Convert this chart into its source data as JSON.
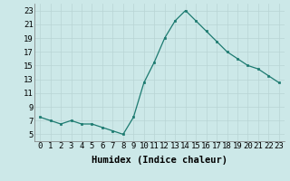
{
  "x": [
    0,
    1,
    2,
    3,
    4,
    5,
    6,
    7,
    8,
    9,
    10,
    11,
    12,
    13,
    14,
    15,
    16,
    17,
    18,
    19,
    20,
    21,
    22,
    23
  ],
  "y": [
    7.5,
    7.0,
    6.5,
    7.0,
    6.5,
    6.5,
    6.0,
    5.5,
    5.0,
    7.5,
    12.5,
    15.5,
    19.0,
    21.5,
    23.0,
    21.5,
    20.0,
    18.5,
    17.0,
    16.0,
    15.0,
    14.5,
    13.5,
    12.5
  ],
  "line_color": "#1c7a70",
  "marker_color": "#1c7a70",
  "bg_color": "#cce8e8",
  "grid_color": "#b8d4d4",
  "xlabel": "Humidex (Indice chaleur)",
  "xlim": [
    -0.5,
    23.5
  ],
  "ylim": [
    4,
    24
  ],
  "yticks": [
    5,
    7,
    9,
    11,
    13,
    15,
    17,
    19,
    21,
    23
  ],
  "xtick_labels": [
    "0",
    "1",
    "2",
    "3",
    "4",
    "5",
    "6",
    "7",
    "8",
    "9",
    "10",
    "11",
    "12",
    "13",
    "14",
    "15",
    "16",
    "17",
    "18",
    "19",
    "20",
    "21",
    "22",
    "23"
  ],
  "xlabel_fontsize": 7.5,
  "tick_fontsize": 6.5
}
